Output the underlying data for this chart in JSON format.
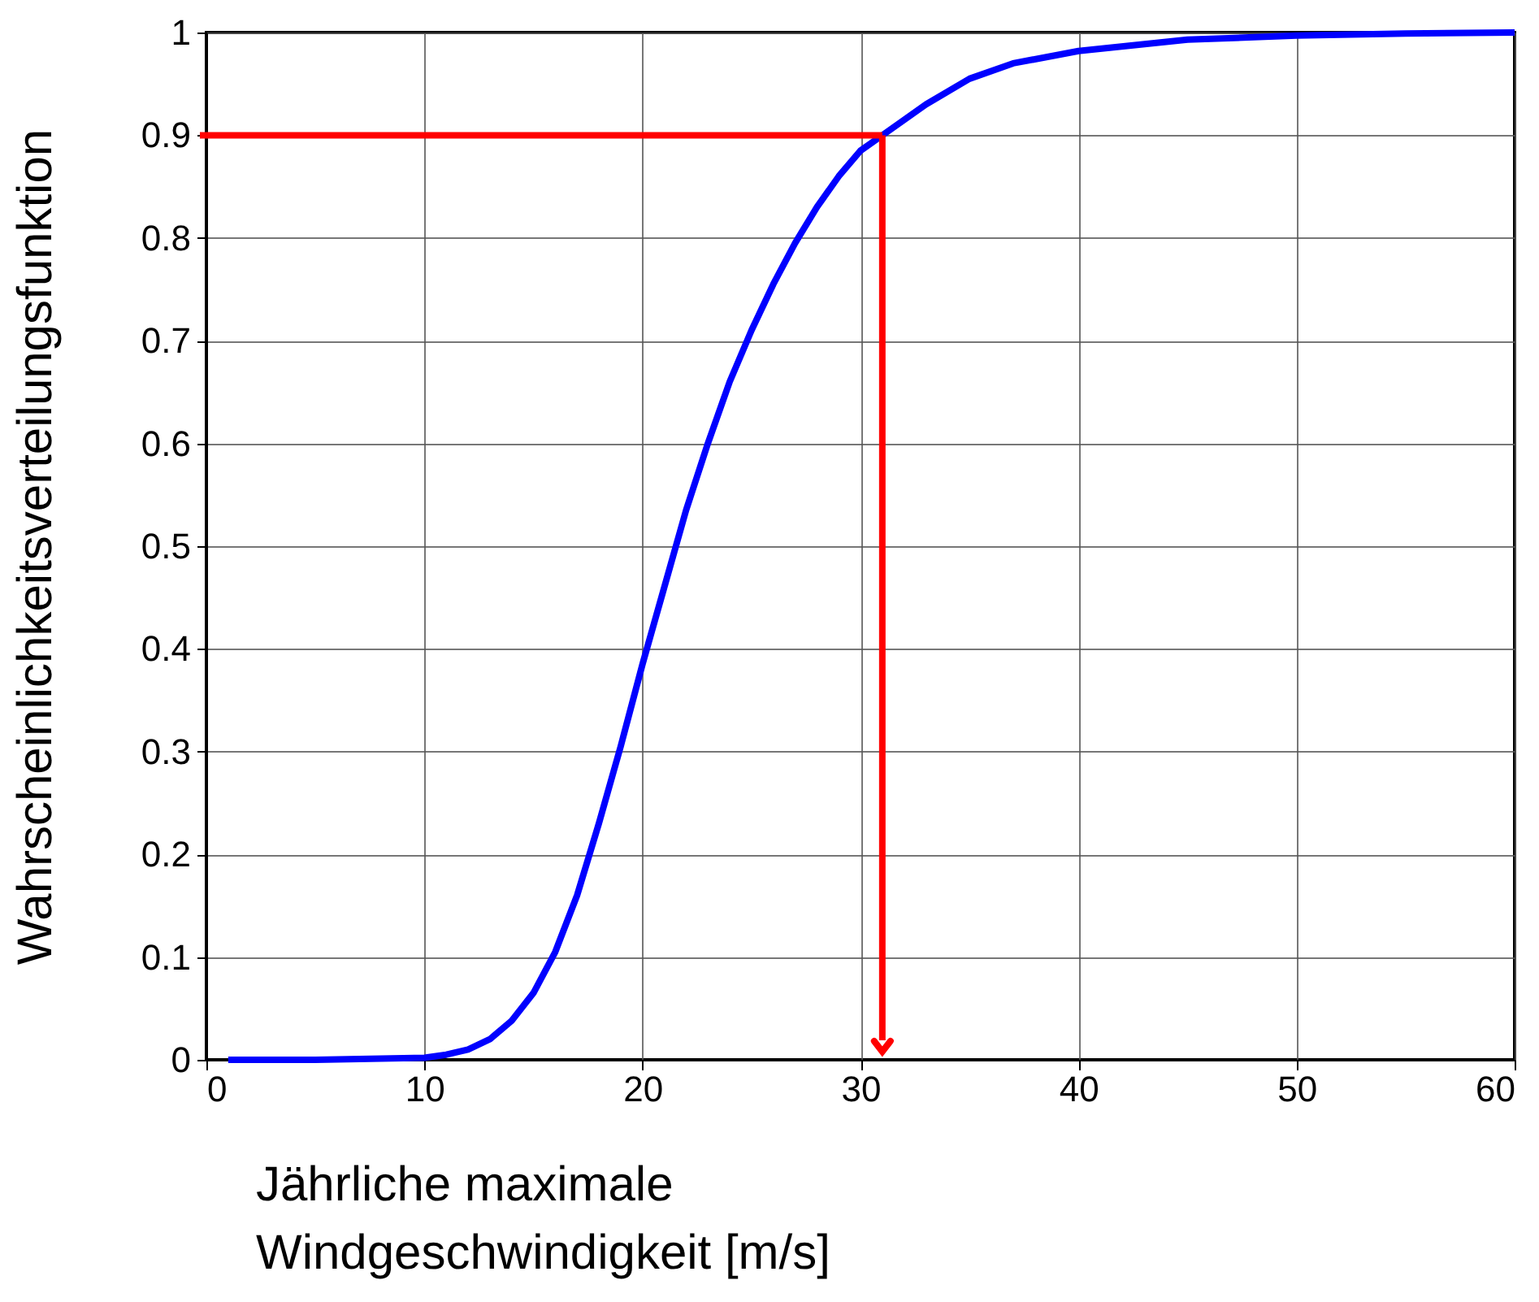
{
  "chart_data": {
    "type": "line",
    "xlabel": "Jährliche maximale\nWindgeschwindigkeit [m/s]",
    "ylabel": "Wahrscheinlichkeitsverteilungsfunktion",
    "series": [
      {
        "color": "#0000ff",
        "x": [
          1,
          5,
          10,
          11,
          12,
          13,
          14,
          15,
          16,
          17,
          18,
          19,
          20,
          21,
          22,
          23,
          24,
          25,
          26,
          27,
          28,
          29,
          30,
          31,
          32,
          33,
          35,
          37,
          40,
          45,
          50,
          55,
          60
        ],
        "values": [
          0,
          0,
          0.002,
          0.005,
          0.01,
          0.02,
          0.038,
          0.065,
          0.105,
          0.16,
          0.23,
          0.305,
          0.385,
          0.46,
          0.535,
          0.6,
          0.66,
          0.71,
          0.755,
          0.795,
          0.83,
          0.86,
          0.885,
          0.9,
          0.915,
          0.93,
          0.955,
          0.97,
          0.982,
          0.993,
          0.997,
          0.999,
          1
        ]
      }
    ],
    "ref_lines": [
      {
        "axis": "y",
        "value": 0.9,
        "color": "#ff0000"
      },
      {
        "axis": "x",
        "value": 31,
        "color": "#ff0000"
      }
    ],
    "xlim": [
      0,
      60
    ],
    "xticks": [
      0,
      10,
      20,
      30,
      40,
      50,
      60
    ],
    "ylim": [
      0,
      1
    ],
    "yticks": [
      0,
      0.1,
      0.2,
      0.3,
      0.4,
      0.5,
      0.6,
      0.7,
      0.8,
      0.9,
      1
    ],
    "grid": true,
    "marker": "none",
    "line_style": "solid"
  }
}
